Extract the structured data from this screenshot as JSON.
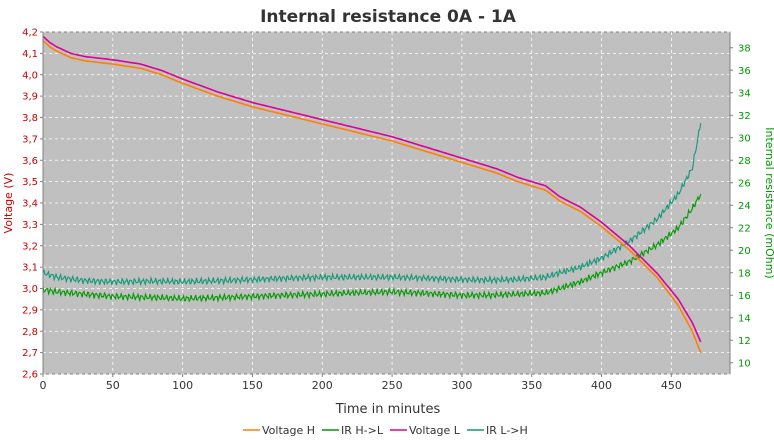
{
  "chart_data": {
    "type": "line",
    "title": "Internal resistance  0A - 1A",
    "xlabel": "Time in minutes",
    "ylabel_left": "Voltage (V)",
    "ylabel_right": "Internal resistance (mOhm)",
    "xlim": [
      0,
      492
    ],
    "ylim_left": [
      2.6,
      4.2
    ],
    "ylim_right": [
      9,
      39.4
    ],
    "x_ticks": [
      0,
      50,
      100,
      150,
      200,
      250,
      300,
      350,
      400,
      450
    ],
    "y_left_ticks": [
      2.6,
      2.7,
      2.8,
      2.9,
      3.0,
      3.1,
      3.2,
      3.3,
      3.4,
      3.5,
      3.6,
      3.7,
      3.8,
      3.9,
      4.0,
      4.1,
      4.2
    ],
    "y_right_ticks": [
      10,
      12,
      14,
      16,
      18,
      20,
      22,
      24,
      26,
      28,
      30,
      32,
      34,
      36,
      38
    ],
    "y_left_tick_labels": [
      "2,6",
      "2,7",
      "2,8",
      "2,9",
      "3,0",
      "3,1",
      "3,2",
      "3,3",
      "3,4",
      "3,5",
      "3,6",
      "3,7",
      "3,8",
      "3,9",
      "4,0",
      "4,1",
      "4,2"
    ],
    "grid": true,
    "legend_position": "bottom",
    "series": [
      {
        "name": "Voltage H",
        "axis": "left",
        "color": "#ff8000",
        "x": [
          0,
          5,
          10,
          20,
          30,
          50,
          70,
          85,
          100,
          125,
          150,
          175,
          200,
          225,
          250,
          275,
          300,
          325,
          340,
          360,
          370,
          385,
          400,
          420,
          440,
          455,
          465,
          471
        ],
        "y": [
          4.16,
          4.13,
          4.11,
          4.08,
          4.065,
          4.05,
          4.03,
          4.0,
          3.96,
          3.9,
          3.85,
          3.81,
          3.77,
          3.73,
          3.69,
          3.64,
          3.59,
          3.54,
          3.5,
          3.46,
          3.41,
          3.36,
          3.29,
          3.18,
          3.05,
          2.92,
          2.8,
          2.7
        ]
      },
      {
        "name": "IR H->L",
        "axis": "right",
        "color": "#009900",
        "x": [
          0,
          10,
          30,
          50,
          80,
          100,
          130,
          150,
          170,
          200,
          220,
          250,
          270,
          300,
          320,
          340,
          360,
          370,
          385,
          400,
          420,
          440,
          455,
          465,
          471
        ],
        "y": [
          16.5,
          16.3,
          16.1,
          15.9,
          15.8,
          15.7,
          15.8,
          15.9,
          16.0,
          16.1,
          16.2,
          16.3,
          16.2,
          16.0,
          16.0,
          16.1,
          16.2,
          16.6,
          17.2,
          18.0,
          19.0,
          20.5,
          22.0,
          23.7,
          25.0
        ]
      },
      {
        "name": "Voltage L",
        "axis": "left",
        "color": "#dd0099",
        "x": [
          0,
          5,
          10,
          20,
          30,
          50,
          70,
          85,
          100,
          125,
          150,
          175,
          200,
          225,
          250,
          275,
          300,
          325,
          340,
          360,
          370,
          385,
          400,
          420,
          440,
          455,
          465,
          471
        ],
        "y": [
          4.18,
          4.15,
          4.13,
          4.1,
          4.085,
          4.07,
          4.05,
          4.02,
          3.98,
          3.92,
          3.87,
          3.83,
          3.79,
          3.75,
          3.71,
          3.66,
          3.61,
          3.56,
          3.52,
          3.48,
          3.43,
          3.38,
          3.31,
          3.2,
          3.07,
          2.95,
          2.84,
          2.75
        ]
      },
      {
        "name": "IR L->H",
        "axis": "right",
        "color": "#119977",
        "x": [
          0,
          10,
          30,
          50,
          80,
          100,
          130,
          150,
          170,
          200,
          220,
          250,
          270,
          300,
          320,
          340,
          360,
          370,
          385,
          400,
          420,
          440,
          455,
          465,
          471
        ],
        "y": [
          18.0,
          17.6,
          17.3,
          17.2,
          17.25,
          17.2,
          17.3,
          17.4,
          17.5,
          17.6,
          17.6,
          17.6,
          17.55,
          17.4,
          17.35,
          17.4,
          17.6,
          18.0,
          18.5,
          19.3,
          20.8,
          22.8,
          25.0,
          27.3,
          31.3
        ]
      }
    ]
  }
}
